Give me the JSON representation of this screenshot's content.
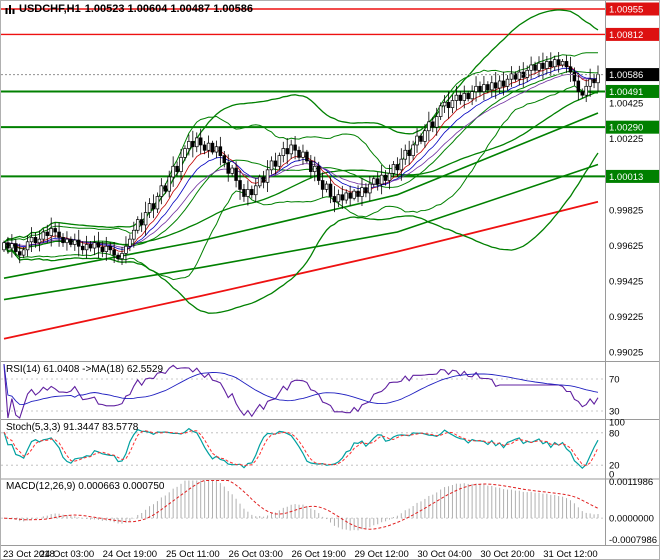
{
  "header": {
    "symbol_period": "USDCHF,H1",
    "ohlc": "1.00523 1.00604 1.00487 1.00586"
  },
  "panels": {
    "rsi": {
      "label": "RSI(14) 61.0408 ->MA(18) 62.5529",
      "levels": [
        70,
        30
      ],
      "level_labels": [
        "70",
        "30"
      ]
    },
    "stoch": {
      "label": "Stoch(5,3,3) 91.3447 83.5778",
      "levels": [
        100,
        80,
        20,
        0
      ],
      "level_labels": [
        "100",
        "80",
        "20",
        "0"
      ],
      "dotted": [
        80,
        20
      ]
    },
    "macd": {
      "label": "MACD(12,26,9) 0.000663 0.000750",
      "scale_values": [
        0.0011986,
        0,
        -0.0007986
      ],
      "scale_labels": [
        "0.0011986",
        "0.0000000",
        "-0.0007986"
      ]
    }
  },
  "price_scale": {
    "ticks": [
      "1.00425",
      "1.00225",
      "1.00025",
      "0.99825",
      "0.99625",
      "0.99425",
      "0.99225",
      "0.99025"
    ],
    "markers": [
      {
        "text": "1.00955",
        "value": 1.00955,
        "type": "resistance",
        "color": "#dd1111"
      },
      {
        "text": "1.00812",
        "value": 1.00812,
        "type": "resistance",
        "color": "#dd1111"
      },
      {
        "text": "1.00586",
        "value": 1.00586,
        "type": "current",
        "color": "#000000"
      },
      {
        "text": "1.00491",
        "value": 1.00491,
        "type": "support",
        "color": "#008000"
      },
      {
        "text": "1.00290",
        "value": 1.0029,
        "type": "support",
        "color": "#008000"
      },
      {
        "text": "1.00013",
        "value": 1.00013,
        "type": "support",
        "color": "#008000"
      }
    ]
  },
  "chart_data": {
    "type": "candlestick",
    "symbol": "USDCHF",
    "timeframe": "H1",
    "title": "USDCHF,H1",
    "quote": {
      "open": 1.00523,
      "high": 1.00604,
      "low": 1.00487,
      "close": 1.00586
    },
    "price_range": [
      0.9898,
      1.01
    ],
    "macd_range": [
      -0.00085,
      0.00125
    ],
    "x_labels": [
      "23 Oct 2018",
      "24 Oct 03:00",
      "24 Oct 19:00",
      "25 Oct 11:00",
      "26 Oct 03:00",
      "26 Oct 19:00",
      "29 Oct 12:00",
      "30 Oct 04:00",
      "30 Oct 20:00",
      "31 Oct 12:00"
    ],
    "x_label_indices": [
      0,
      16,
      32,
      48,
      64,
      80,
      96,
      112,
      128,
      144
    ],
    "closes": [
      0.9964,
      0.9961,
      0.99635,
      0.9959,
      0.9957,
      0.996,
      0.99645,
      0.9967,
      0.9964,
      0.9966,
      0.997,
      0.9968,
      0.9972,
      0.997,
      0.9967,
      0.9964,
      0.9966,
      0.9963,
      0.99655,
      0.9962,
      0.996,
      0.9963,
      0.9961,
      0.9964,
      0.99615,
      0.9959,
      0.9962,
      0.996,
      0.9957,
      0.9955,
      0.9958,
      0.9962,
      0.9966,
      0.9971,
      0.9977,
      0.9974,
      0.9981,
      0.9986,
      0.9983,
      0.999,
      0.9996,
      0.9993,
      1.0001,
      1.0007,
      1.0004,
      1.0012,
      1.0017,
      1.0021,
      1.0018,
      1.0023,
      1.0019,
      1.0016,
      1.002,
      1.0015,
      1.0018,
      1.0013,
      1.0009,
      1.0003,
      1.0006,
      0.9999,
      0.9994,
      0.999,
      0.9994,
      0.9991,
      0.9996,
      1.0001,
      0.9998,
      1.0005,
      1.001,
      1.0007,
      1.0013,
      1.0017,
      1.0014,
      1.0019,
      1.0016,
      1.0012,
      1.0015,
      1.001,
      1.0004,
      1.0007,
      0.9999,
      0.9994,
      0.9997,
      0.999,
      0.9987,
      0.9991,
      0.9988,
      0.9992,
      0.9989,
      0.9993,
      0.999,
      0.9995,
      0.9992,
      0.9997,
      1.0,
      0.9997,
      1.0002,
      0.9999,
      1.0003,
      1.0008,
      1.0005,
      1.0011,
      1.0016,
      1.0013,
      1.0019,
      1.0024,
      1.0021,
      1.0027,
      1.0032,
      1.0029,
      1.0035,
      1.0041,
      1.0043,
      1.004,
      1.0044,
      1.0047,
      1.0044,
      1.0048,
      1.0045,
      1.0049,
      1.0052,
      1.0049,
      1.0053,
      1.005,
      1.0054,
      1.0051,
      1.0055,
      1.0052,
      1.0056,
      1.0059,
      1.0056,
      1.006,
      1.0057,
      1.0061,
      1.0064,
      1.0061,
      1.0065,
      1.0062,
      1.0066,
      1.0063,
      1.0067,
      1.0064,
      1.0066,
      1.0063,
      1.006,
      1.0055,
      1.0049,
      1.0047,
      1.0052,
      1.0056,
      1.0054,
      1.00586
    ],
    "levels": {
      "resistance": [
        1.00955,
        1.00812
      ],
      "support": [
        1.00491,
        1.0029,
        1.00013
      ],
      "current": 1.00586
    },
    "trend_lines": {
      "green_ma_fast": [
        [
          0,
          0.9944
        ],
        [
          50,
          0.9965
        ],
        [
          100,
          0.9991
        ],
        [
          151,
          1.0037
        ]
      ],
      "green_ma_slow": [
        [
          0,
          0.9932
        ],
        [
          50,
          0.995
        ],
        [
          100,
          0.997
        ],
        [
          151,
          1.0008
        ]
      ],
      "red_ma": [
        [
          0,
          0.991
        ],
        [
          50,
          0.9934
        ],
        [
          100,
          0.9959
        ],
        [
          151,
          0.9987
        ]
      ]
    },
    "indicators": {
      "bollinger_fast": {
        "period": 20,
        "deviation": 2
      },
      "bollinger_slow": {
        "period": 50,
        "deviation": 2.5
      },
      "rsi": {
        "period": 14,
        "ma_period": 18,
        "value": 61.0408,
        "ma_value": 62.5529
      },
      "stoch": {
        "k": 5,
        "d": 3,
        "slowing": 3,
        "value": 91.3447,
        "signal_value": 83.5778
      },
      "macd": {
        "fast": 12,
        "slow": 26,
        "signal": 9,
        "value": 0.000663,
        "signal_value": 0.00075
      }
    },
    "colors": {
      "support": "#008000",
      "resistance": "#ee1111",
      "bands": "#008000",
      "ma_red": "#c00000",
      "ma_blue": "#0000c0",
      "ma_purple": "#7030a0",
      "rsi": "#6020a0",
      "rsi_ma": "#2020c0",
      "stoch_k": "#00a0a0",
      "stoch_d": "#ff3030",
      "macd_hist": "#b0b0b0",
      "macd_signal": "#e02020"
    },
    "legend_position": "none",
    "grid": false
  }
}
